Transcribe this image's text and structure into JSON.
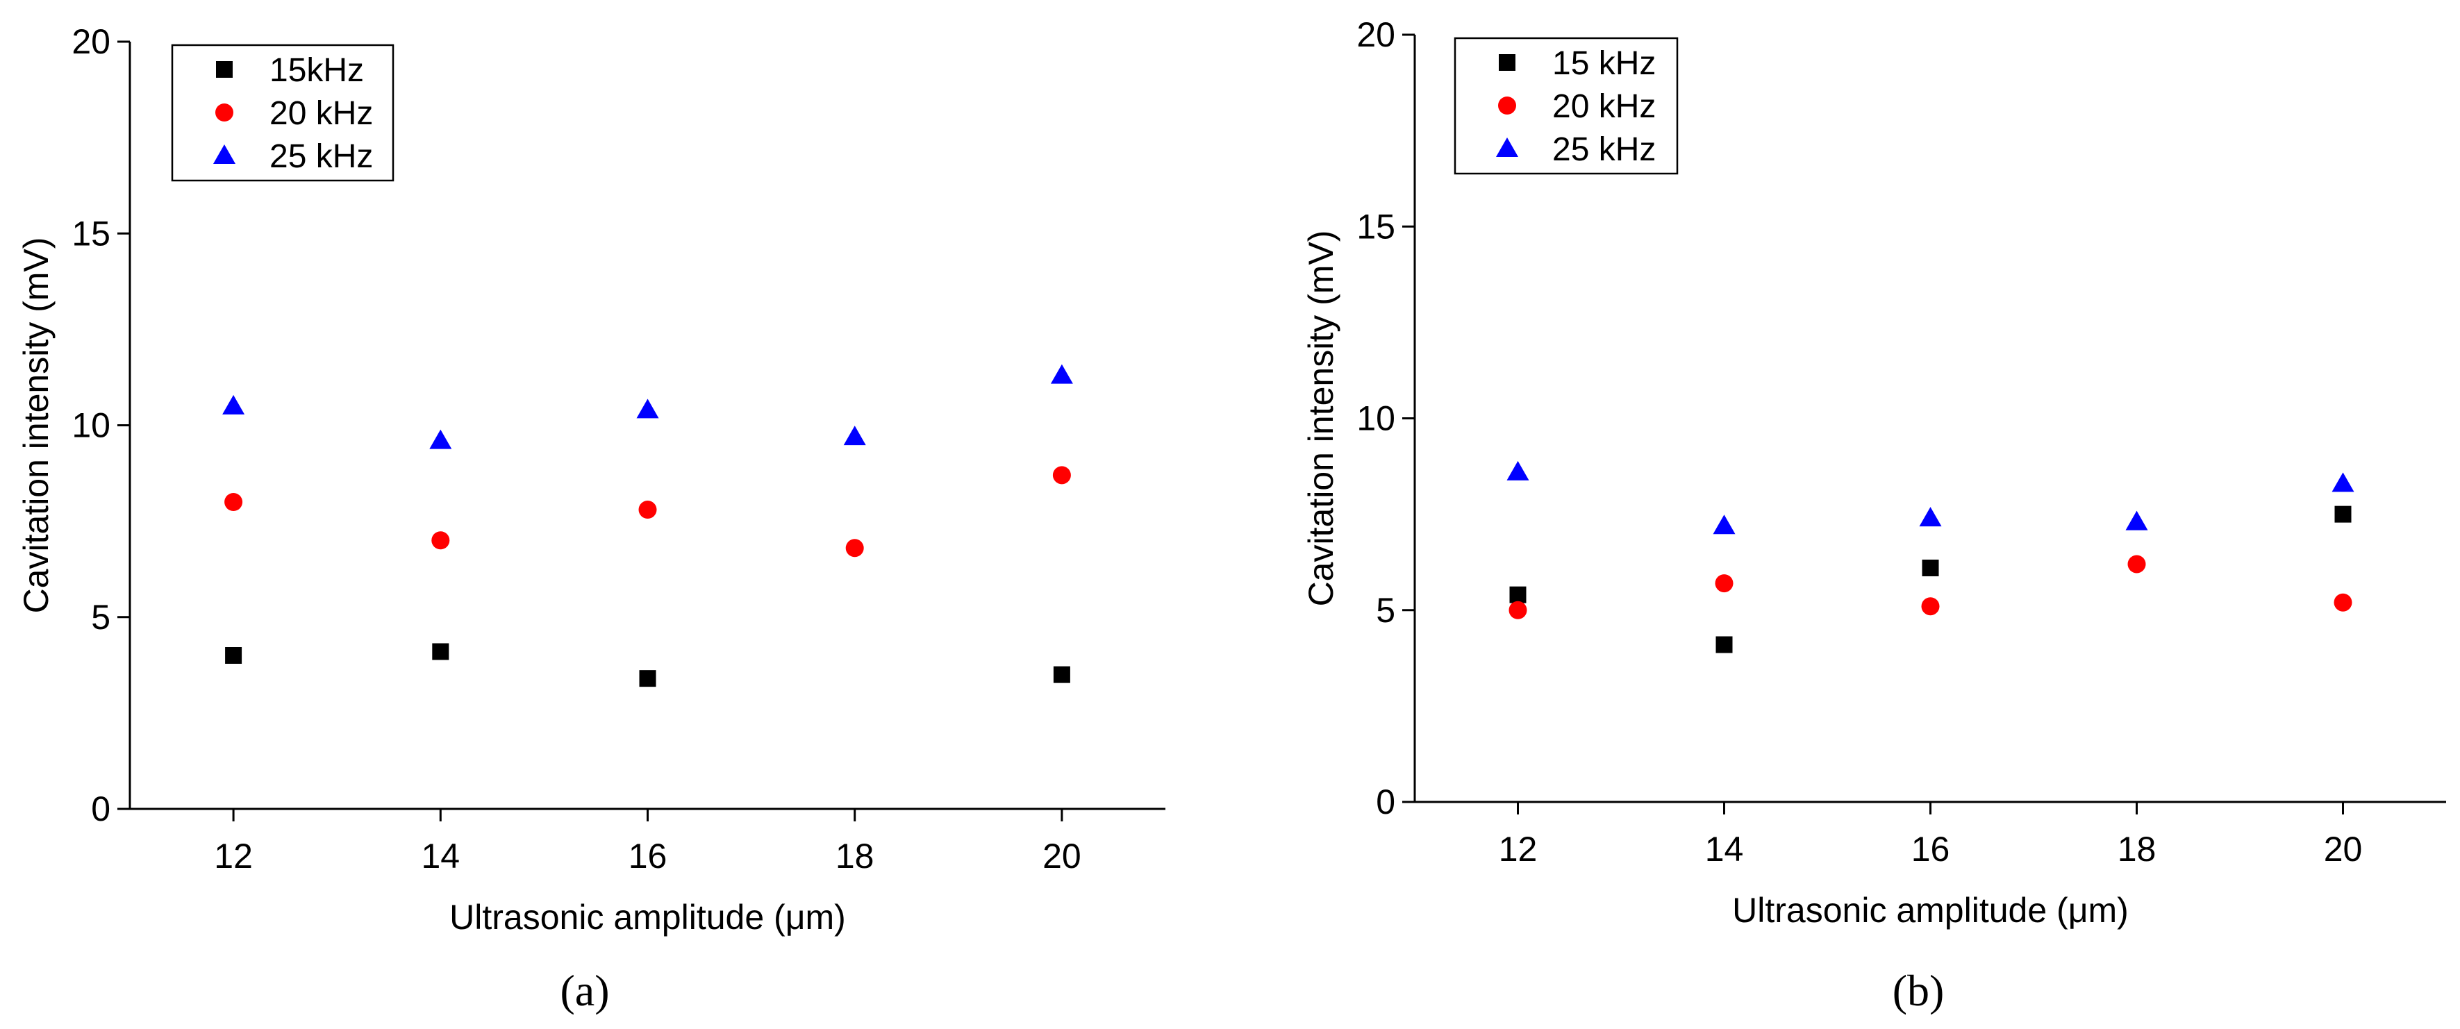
{
  "colors": {
    "series_15": "#000000",
    "series_20": "#ff0000",
    "series_25": "#0000ff",
    "axis": "#000000",
    "background": "#ffffff"
  },
  "chart_data": [
    {
      "type": "scatter",
      "panel_label": "(a)",
      "xlabel": "Ultrasonic amplitude (μm)",
      "ylabel": "Cavitation intensity (mV)",
      "xlim": [
        11,
        21
      ],
      "ylim": [
        0,
        20
      ],
      "xticks": [
        12,
        14,
        16,
        18,
        20
      ],
      "yticks": [
        0,
        5,
        10,
        15,
        20
      ],
      "legend_position": "top-left",
      "grid": false,
      "series": [
        {
          "name": "15kHz",
          "marker": "square",
          "color": "#000000",
          "points": [
            [
              12,
              4.0
            ],
            [
              14,
              4.1
            ],
            [
              16,
              3.4
            ],
            [
              20,
              3.5
            ]
          ]
        },
        {
          "name": "20 kHz",
          "marker": "circle",
          "color": "#ff0000",
          "points": [
            [
              12,
              8.0
            ],
            [
              14,
              7.0
            ],
            [
              16,
              7.8
            ],
            [
              18,
              6.8
            ],
            [
              20,
              8.7
            ]
          ]
        },
        {
          "name": "25 kHz",
          "marker": "triangle",
          "color": "#0000ff",
          "points": [
            [
              12,
              10.5
            ],
            [
              14,
              9.6
            ],
            [
              16,
              10.4
            ],
            [
              18,
              9.7
            ],
            [
              20,
              11.3
            ]
          ]
        }
      ]
    },
    {
      "type": "scatter",
      "panel_label": "(b)",
      "xlabel": "Ultrasonic amplitude (μm)",
      "ylabel": "Cavitation intensity (mV)",
      "xlim": [
        11,
        21
      ],
      "ylim": [
        0,
        20
      ],
      "xticks": [
        12,
        14,
        16,
        18,
        20
      ],
      "yticks": [
        0,
        5,
        10,
        15,
        20
      ],
      "legend_position": "top-left",
      "grid": false,
      "series": [
        {
          "name": "15 kHz",
          "marker": "square",
          "color": "#000000",
          "points": [
            [
              12,
              5.4
            ],
            [
              14,
              4.1
            ],
            [
              16,
              6.1
            ],
            [
              20,
              7.5
            ]
          ]
        },
        {
          "name": "20 kHz",
          "marker": "circle",
          "color": "#ff0000",
          "points": [
            [
              12,
              5.0
            ],
            [
              14,
              5.7
            ],
            [
              16,
              5.1
            ],
            [
              18,
              6.2
            ],
            [
              20,
              5.2
            ]
          ]
        },
        {
          "name": "25 kHz",
          "marker": "triangle",
          "color": "#0000ff",
          "points": [
            [
              12,
              8.6
            ],
            [
              14,
              7.2
            ],
            [
              16,
              7.4
            ],
            [
              18,
              7.3
            ],
            [
              20,
              8.3
            ]
          ]
        }
      ]
    }
  ]
}
